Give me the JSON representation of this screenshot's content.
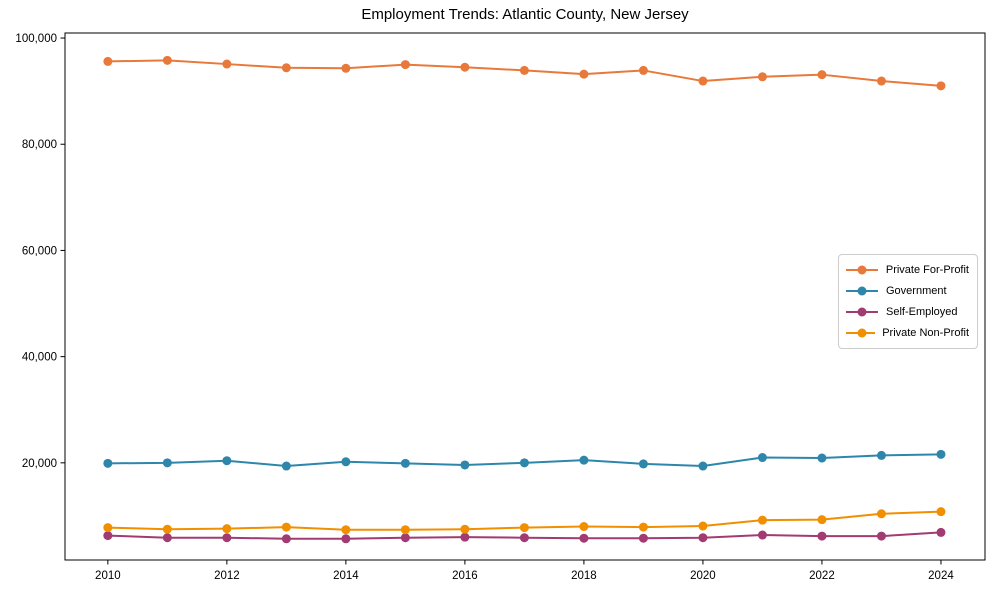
{
  "chart_data": {
    "type": "line",
    "title": "Employment Trends: Atlantic County, New Jersey",
    "xlabel": "",
    "ylabel": "",
    "x": [
      2010,
      2011,
      2012,
      2013,
      2014,
      2015,
      2016,
      2017,
      2018,
      2019,
      2020,
      2021,
      2022,
      2023,
      2024
    ],
    "series": [
      {
        "name": "Private For-Profit",
        "color": "#E8793B",
        "values": [
          95600,
          95800,
          95100,
          94400,
          94300,
          95000,
          94500,
          93900,
          93200,
          93900,
          91900,
          92700,
          93100,
          91900,
          91000
        ]
      },
      {
        "name": "Government",
        "color": "#2E86AB",
        "values": [
          19900,
          20000,
          20400,
          19400,
          20200,
          19900,
          19600,
          20000,
          20500,
          19800,
          19400,
          21000,
          20900,
          21400,
          21600
        ]
      },
      {
        "name": "Self-Employed",
        "color": "#A23B72",
        "values": [
          6300,
          5900,
          5900,
          5700,
          5700,
          5900,
          6000,
          5900,
          5800,
          5800,
          5900,
          6400,
          6200,
          6200,
          6900
        ]
      },
      {
        "name": "Private Non-Profit",
        "color": "#F18F01",
        "values": [
          7800,
          7500,
          7600,
          7900,
          7400,
          7400,
          7500,
          7800,
          8000,
          7900,
          8100,
          9200,
          9300,
          10400,
          10800
        ]
      }
    ],
    "xlim": [
      2009.28,
      2024.74
    ],
    "ylim": [
      1700,
      100950
    ],
    "xticks": [
      2010,
      2012,
      2014,
      2016,
      2018,
      2020,
      2022,
      2024
    ],
    "xtick_labels": [
      "2010",
      "2012",
      "2014",
      "2016",
      "2018",
      "2020",
      "2022",
      "2024"
    ],
    "yticks": [
      20000,
      40000,
      60000,
      80000,
      100000
    ],
    "ytick_labels": [
      "20,000",
      "40,000",
      "60,000",
      "80,000",
      "100,000"
    ],
    "grid": false,
    "legend_position": "center-right",
    "marker": "circle",
    "axis_color": "#000000",
    "legend_border_color": "#cccccc",
    "background": "#ffffff"
  }
}
